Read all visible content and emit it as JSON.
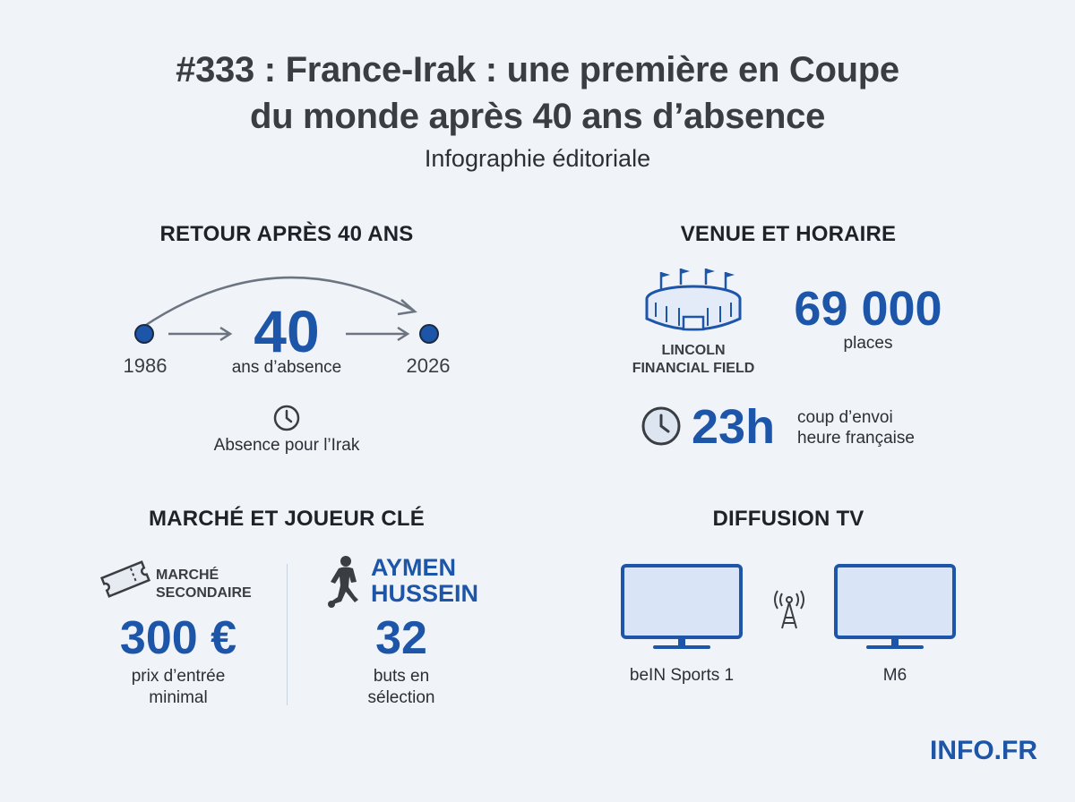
{
  "header": {
    "title_line1": "#333 : France-Irak : une première en Coupe",
    "title_line2": "du monde après 40 ans d’absence",
    "subtitle": "Infographie éditoriale"
  },
  "retour": {
    "heading": "RETOUR APRÈS 40 ANS",
    "year_start": "1986",
    "year_end": "2026",
    "years_count": "40",
    "years_label": "ans d’absence",
    "note": "Absence pour l’Irak"
  },
  "venue": {
    "heading": "VENUE ET HORAIRE",
    "stadium_line1": "LINCOLN",
    "stadium_line2": "FINANCIAL FIELD",
    "capacity": "69 000",
    "capacity_label": "places",
    "time": "23h",
    "time_label_line1": "coup d’envoi",
    "time_label_line2": "heure française"
  },
  "marche": {
    "heading": "MARCHÉ ET JOUEUR CLÉ",
    "market_label_line1": "MARCHÉ",
    "market_label_line2": "SECONDAIRE",
    "price": "300 €",
    "price_label_line1": "prix d’entrée",
    "price_label_line2": "minimal",
    "player_line1": "AYMEN",
    "player_line2": "HUSSEIN",
    "goals": "32",
    "goals_label_line1": "buts en",
    "goals_label_line2": "sélection"
  },
  "diffusion": {
    "heading": "DIFFUSION TV",
    "channel_1": "beIN Sports 1",
    "channel_2": "M6"
  },
  "brand": "INFO.FR",
  "icons": [
    "arc-arrow-icon",
    "arrow-right-icon",
    "clock-icon",
    "stadium-icon",
    "ticket-icon",
    "footballer-icon",
    "tv-icon",
    "antenna-icon"
  ],
  "colors": {
    "accent": "#1d55a8",
    "background": "#f0f4f9",
    "text": "#2b2f36"
  }
}
